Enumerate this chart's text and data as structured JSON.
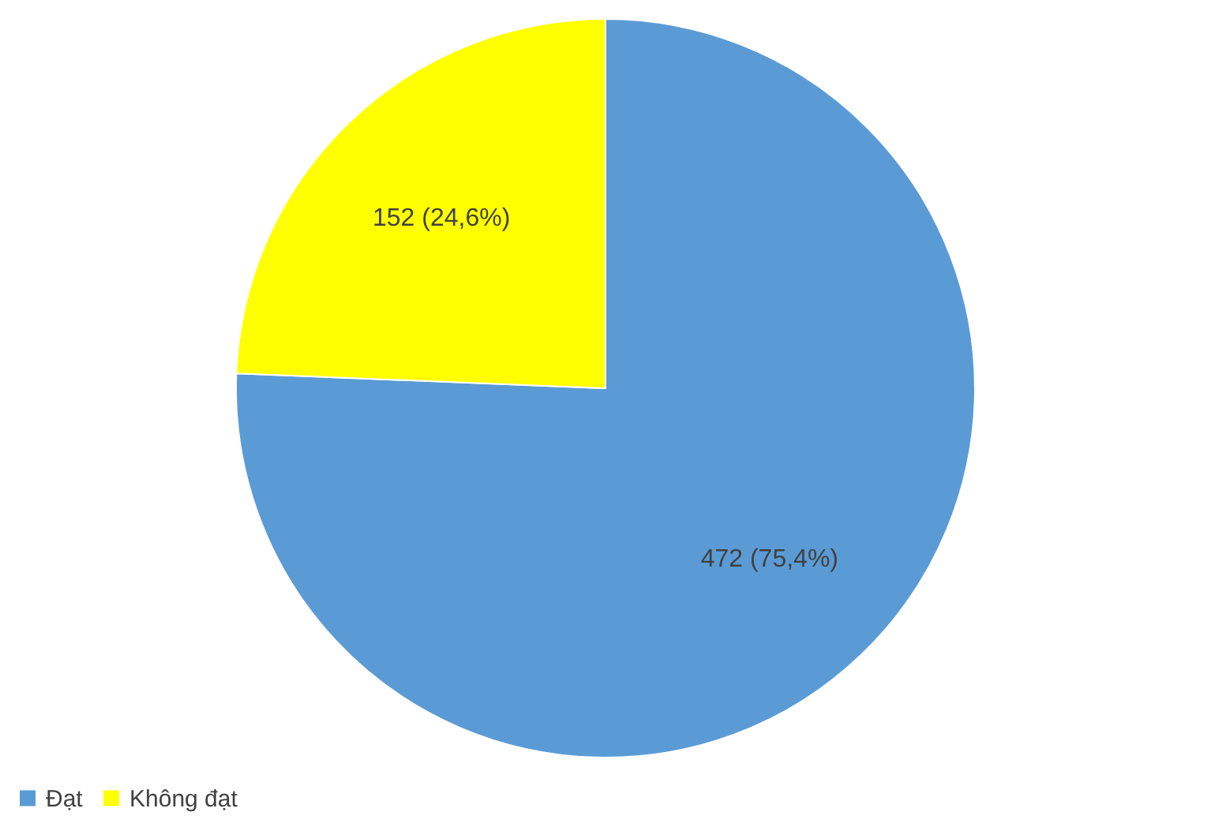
{
  "chart_data": {
    "type": "pie",
    "categories": [
      "Đạt",
      "Không đạt"
    ],
    "values": [
      472,
      152
    ],
    "colors": [
      "#5b9bd5",
      "#ffff00"
    ],
    "value_labels": [
      "472 (75,4%)",
      "152 (24,6%)"
    ],
    "legend": "bottom"
  }
}
